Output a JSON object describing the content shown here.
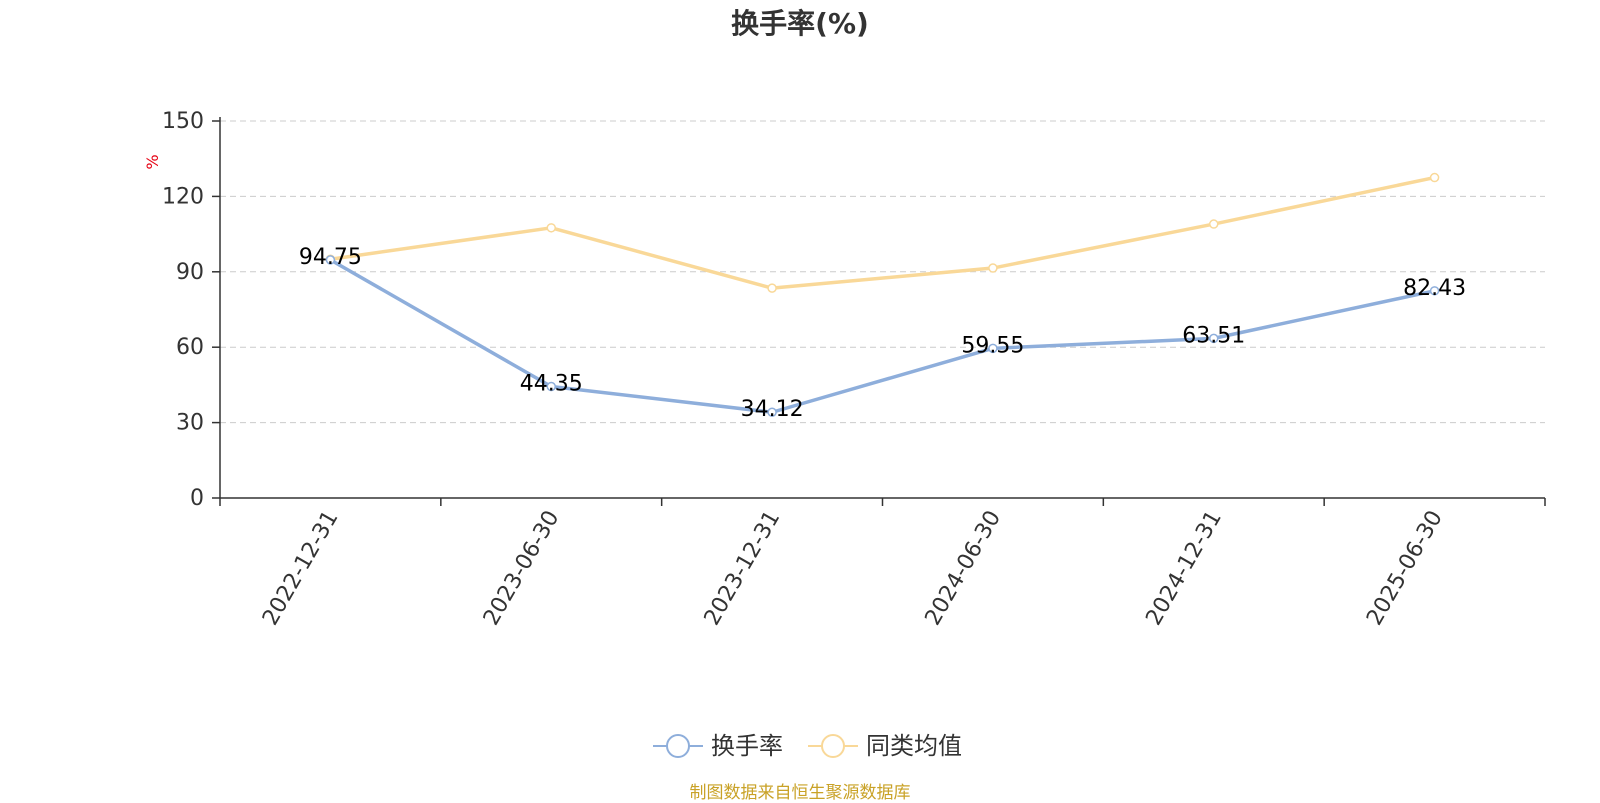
{
  "chart_data": {
    "type": "line",
    "title": "换手率(%)",
    "ylabel": "%",
    "categories": [
      "2022-12-31",
      "2023-06-30",
      "2023-12-31",
      "2024-06-30",
      "2024-12-31",
      "2025-06-30"
    ],
    "ylim": [
      0,
      150
    ],
    "yticks": [
      0,
      30,
      60,
      90,
      120,
      150
    ],
    "grid": true,
    "legend_position": "bottom-center",
    "series": [
      {
        "name": "换手率",
        "color": "#8eaedb",
        "values": [
          94.75,
          44.35,
          34.12,
          59.55,
          63.51,
          82.43
        ],
        "labels": [
          "94.75",
          "44.35",
          "34.12",
          "59.55",
          "63.51",
          "82.43"
        ]
      },
      {
        "name": "同类均值",
        "color": "#f9d898",
        "values": [
          95.0,
          107.5,
          83.5,
          91.5,
          109.0,
          127.5
        ]
      }
    ]
  },
  "source_note": "制图数据来自恒生聚源数据库",
  "colors": {
    "ylabel": "#e60012",
    "source_note": "#c9a227",
    "grid": "#cccccc",
    "axis": "#333333"
  }
}
